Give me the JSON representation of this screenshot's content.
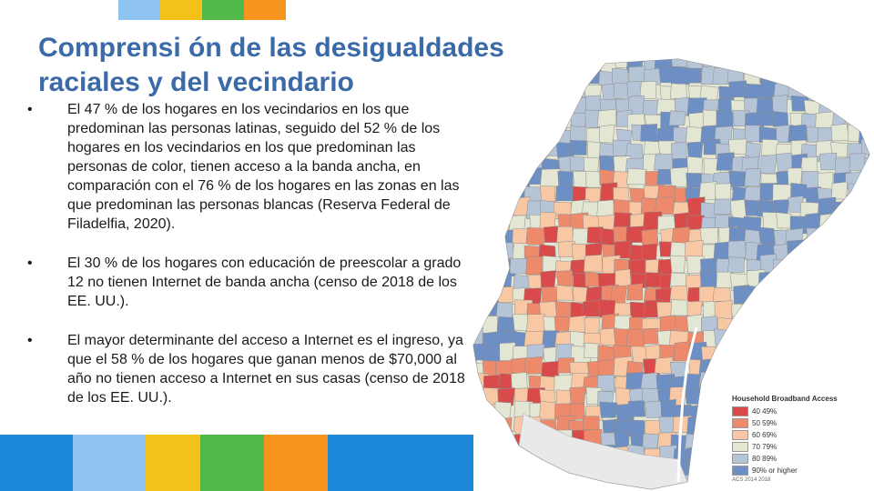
{
  "topbar_colors": [
    "#8fc3f2",
    "#f4c119",
    "#51b84a",
    "#f7941d"
  ],
  "bottombar_colors": [
    "#1e88d9",
    "#8fc3f2",
    "#f4c119",
    "#51b84a",
    "#f7941d",
    "#1e88d9"
  ],
  "title_line1": "Comprensi ón de las desigualdades",
  "title_line2": "raciales y del vecindario",
  "bullets": [
    "El 47 % de los hogares en los vecindarios en los que predominan las personas latinas, seguido del 52 % de los hogares en los vecindarios en los que predominan las personas de color, tienen acceso a la banda ancha, en comparación con el 76 % de los hogares en las zonas en las que predominan las personas blancas (Reserva Federal de Filadelfia, 2020).",
    "El 30 % de los hogares con educación de preescolar a grado 12 no tienen Internet de banda ancha (censo de 2018 de los EE. UU.).",
    "El mayor determinante del acceso a Internet es el ingreso, ya que el 58 % de los hogares que ganan menos de $70,000 al año no tienen acceso a Internet en sus casas (censo de 2018 de los EE. UU.)."
  ],
  "bullet_symbol": "•",
  "legend": {
    "title": "Household Broadband Access",
    "items": [
      {
        "label": "40 49%",
        "color": "#d94b4b"
      },
      {
        "label": "50 59%",
        "color": "#ee8a6c"
      },
      {
        "label": "60 69%",
        "color": "#f8c8a5"
      },
      {
        "label": "70 79%",
        "color": "#e3e6d3"
      },
      {
        "label": "80 89%",
        "color": "#b6c4d8"
      },
      {
        "label": "90% or higher",
        "color": "#6e8fc3"
      }
    ],
    "source": "ACS 2014 2018"
  }
}
